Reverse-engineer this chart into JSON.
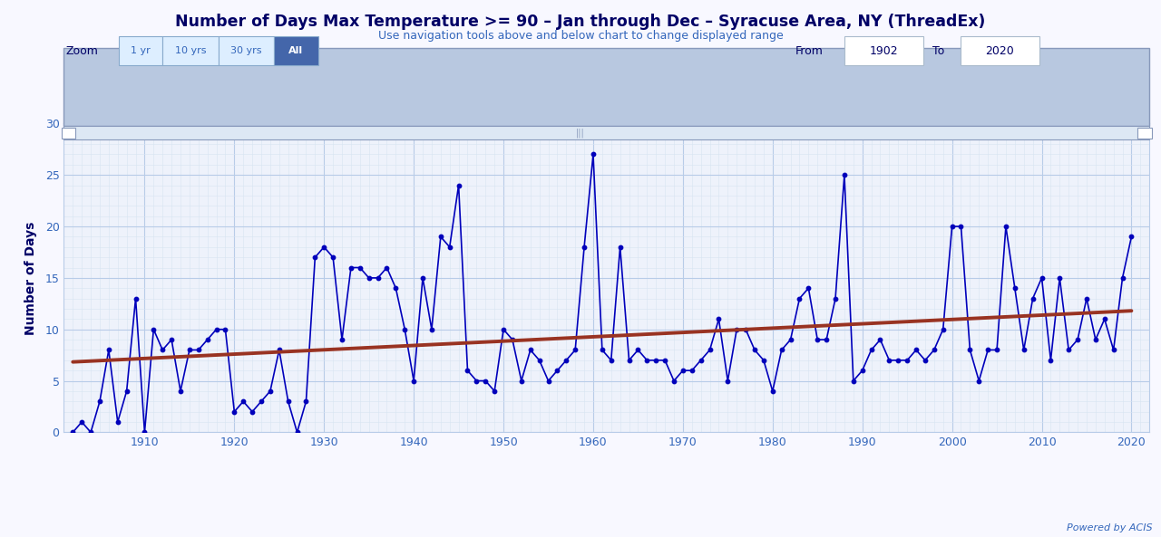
{
  "title": "Number of Days Max Temperature >= 90 – Jan through Dec – Syracuse Area, NY (ThreadEx)",
  "subtitle": "Use navigation tools above and below chart to change displayed range",
  "ylabel": "Number of Days",
  "background_color": "#f8f8ff",
  "plot_bg_color": "#eef2fb",
  "grid_major_color": "#b8cce8",
  "grid_minor_color": "#d8e4f2",
  "line_color": "#0000bb",
  "trend_color": "#993322",
  "title_color": "#000066",
  "subtitle_color": "#3366bb",
  "axis_color": "#3366bb",
  "years": [
    1902,
    1903,
    1904,
    1905,
    1906,
    1907,
    1908,
    1909,
    1910,
    1911,
    1912,
    1913,
    1914,
    1915,
    1916,
    1917,
    1918,
    1919,
    1920,
    1921,
    1922,
    1923,
    1924,
    1925,
    1926,
    1927,
    1928,
    1929,
    1930,
    1931,
    1932,
    1933,
    1934,
    1935,
    1936,
    1937,
    1938,
    1939,
    1940,
    1941,
    1942,
    1943,
    1944,
    1945,
    1946,
    1947,
    1948,
    1949,
    1950,
    1951,
    1952,
    1953,
    1954,
    1955,
    1956,
    1957,
    1958,
    1959,
    1960,
    1961,
    1962,
    1963,
    1964,
    1965,
    1966,
    1967,
    1968,
    1969,
    1970,
    1971,
    1972,
    1973,
    1974,
    1975,
    1976,
    1977,
    1978,
    1979,
    1980,
    1981,
    1982,
    1983,
    1984,
    1985,
    1986,
    1987,
    1988,
    1989,
    1990,
    1991,
    1992,
    1993,
    1994,
    1995,
    1996,
    1997,
    1998,
    1999,
    2000,
    2001,
    2002,
    2003,
    2004,
    2005,
    2006,
    2007,
    2008,
    2009,
    2010,
    2011,
    2012,
    2013,
    2014,
    2015,
    2016,
    2017,
    2018,
    2019,
    2020
  ],
  "values": [
    0,
    1,
    0,
    3,
    8,
    1,
    4,
    13,
    0,
    10,
    8,
    9,
    4,
    8,
    8,
    9,
    10,
    10,
    2,
    3,
    2,
    3,
    4,
    8,
    3,
    0,
    3,
    17,
    18,
    17,
    9,
    16,
    16,
    15,
    15,
    16,
    14,
    10,
    5,
    15,
    10,
    19,
    18,
    24,
    6,
    5,
    5,
    4,
    10,
    9,
    5,
    8,
    7,
    5,
    6,
    7,
    8,
    18,
    27,
    8,
    7,
    18,
    7,
    8,
    7,
    7,
    7,
    5,
    6,
    6,
    7,
    8,
    11,
    5,
    10,
    10,
    8,
    7,
    4,
    8,
    9,
    13,
    14,
    9,
    9,
    13,
    25,
    5,
    6,
    8,
    9,
    7,
    7,
    7,
    8,
    7,
    8,
    10,
    20,
    20,
    8,
    5,
    8,
    8,
    20,
    14,
    8,
    13,
    15,
    7,
    15,
    8,
    9,
    13,
    9,
    11,
    8,
    15,
    19
  ],
  "xlim": [
    1901,
    2022
  ],
  "ylim": [
    0,
    30
  ],
  "yticks": [
    0,
    5,
    10,
    15,
    20,
    25,
    30
  ],
  "xticks": [
    1910,
    1920,
    1930,
    1940,
    1950,
    1960,
    1970,
    1980,
    1990,
    2000,
    2010,
    2020
  ],
  "zoom_labels": [
    "1 yr",
    "10 yrs",
    "30 yrs",
    "All"
  ],
  "from_year": "1902",
  "to_year": "2020",
  "minimap_bg": "#b8c8e0",
  "minimap_fill_top": "#9aaac8",
  "minimap_fill_bottom": "#c8d8ec",
  "mini_xticks": [
    1920,
    1940,
    1960,
    1980,
    2000
  ],
  "btn_active_bg": "#4466aa",
  "btn_inactive_bg": "#ddeeff",
  "btn_border": "#88aacc",
  "scrollbar_bg": "#dde8f4",
  "scrollbar_border": "#8899bb"
}
